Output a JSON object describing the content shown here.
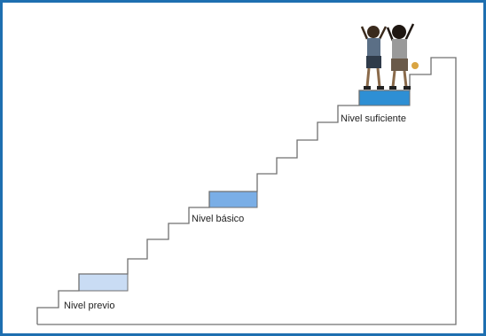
{
  "levels": [
    {
      "label": "Nivel previo",
      "color": "#c9dcf4"
    },
    {
      "label": "Nivel básico",
      "color": "#7aaee6"
    },
    {
      "label": "Nivel suficiente",
      "color": "#2e8fd4"
    }
  ],
  "colors": {
    "frame": "#1e6fb0",
    "stairs": "#707070"
  },
  "figure": {
    "name": "two-children-celebrating-illustration"
  }
}
